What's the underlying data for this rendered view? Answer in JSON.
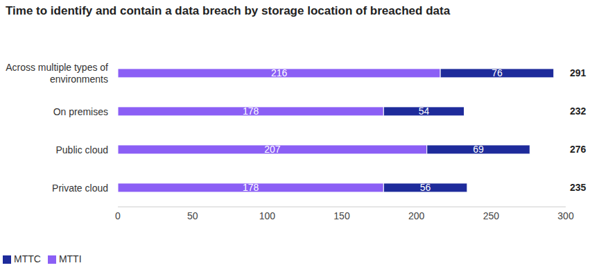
{
  "chart_data": {
    "type": "bar",
    "title": "Time to identify and contain a data breach by storage location of breached data",
    "orientation": "horizontal",
    "stacked": true,
    "data_labels": true,
    "grid": false,
    "legend": "lower left",
    "categories": [
      "Across multiple types of environments",
      "On premises",
      "Public cloud",
      "Private cloud"
    ],
    "series": [
      {
        "name": "MTTI",
        "color": "#8b5ff5",
        "values": [
          216,
          178,
          207,
          178
        ]
      },
      {
        "name": "MTTC",
        "color": "#1e2b9b",
        "values": [
          76,
          54,
          69,
          56
        ]
      }
    ],
    "totals": [
      291,
      232,
      276,
      235
    ],
    "xlim": [
      0,
      300
    ],
    "xticks": [
      0,
      50,
      100,
      150,
      200,
      250,
      300
    ]
  }
}
